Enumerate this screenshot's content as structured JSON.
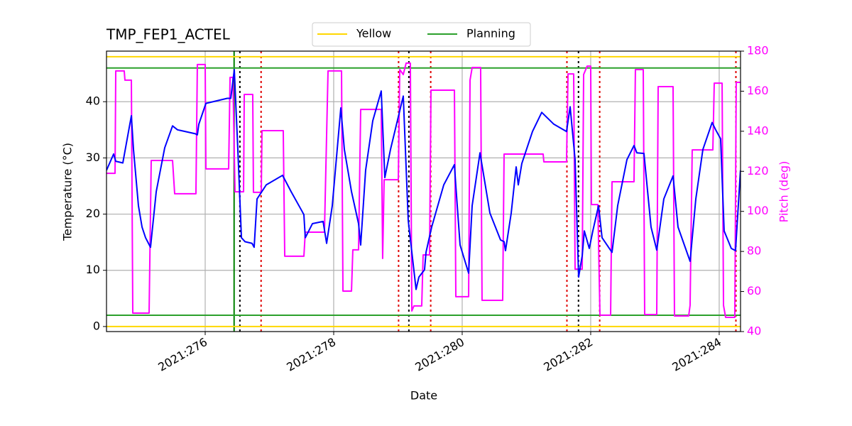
{
  "chart_data": {
    "type": "line",
    "title": "TMP_FEP1_ACTEL",
    "xlabel": "Date",
    "ylabel": "Temperature (°C)",
    "y2label": "Pitch (deg)",
    "y2color": "#ff00ff",
    "xlim": [
      274.464,
      284.332
    ],
    "xticks": [
      {
        "value": 276,
        "label": "2021:276"
      },
      {
        "value": 278,
        "label": "2021:278"
      },
      {
        "value": 280,
        "label": "2021:280"
      },
      {
        "value": 282,
        "label": "2021:282"
      },
      {
        "value": 284,
        "label": "2021:284"
      }
    ],
    "ylim": [
      -0.9,
      49
    ],
    "yticks": [
      0,
      10,
      20,
      30,
      40
    ],
    "y2lim": [
      40,
      180
    ],
    "y2ticks": [
      40,
      60,
      80,
      100,
      120,
      140,
      160,
      180
    ],
    "grid": true,
    "legend": "upper center",
    "series": [
      {
        "color": "#0000ff",
        "x": [
          274.464,
          274.575,
          274.608,
          274.718,
          274.851,
          274.884,
          274.961,
          275.017,
          275.072,
          275.149,
          275.238,
          275.37,
          275.492,
          275.569,
          275.846,
          275.878,
          275.901,
          276.011,
          276.343,
          276.398,
          276.453,
          276.508,
          276.564,
          276.619,
          276.729,
          276.762,
          276.807,
          276.95,
          277.204,
          277.337,
          277.503,
          277.536,
          277.558,
          277.669,
          277.835,
          277.89,
          277.978,
          278.111,
          278.166,
          278.277,
          278.387,
          278.42,
          278.497,
          278.608,
          278.74,
          278.796,
          278.884,
          278.995,
          279.083,
          279.16,
          279.282,
          279.326,
          279.414,
          279.437,
          279.525,
          279.713,
          279.879,
          279.901,
          279.967,
          280.1,
          280.155,
          280.277,
          280.431,
          280.597,
          280.652,
          280.674,
          280.763,
          280.84,
          280.873,
          280.928,
          281.094,
          281.238,
          281.426,
          281.624,
          281.68,
          281.757,
          281.812,
          281.868,
          281.901,
          281.978,
          282.033,
          282.122,
          282.177,
          282.332,
          282.42,
          282.564,
          282.674,
          282.718,
          282.829,
          282.939,
          283.028,
          283.138,
          283.282,
          283.359,
          283.47,
          283.547,
          283.636,
          283.746,
          283.89,
          283.945,
          284.022,
          284.077,
          284.188,
          284.254,
          284.331
        ],
        "values": [
          27.8,
          30.7,
          29.4,
          29.1,
          37.5,
          31.5,
          21.5,
          17.7,
          15.8,
          14.1,
          24.0,
          31.8,
          35.7,
          35.0,
          34.3,
          34.1,
          36.0,
          39.7,
          40.6,
          40.6,
          45.7,
          31.5,
          15.8,
          15.1,
          14.8,
          14.1,
          22.7,
          25.2,
          26.9,
          24.0,
          20.6,
          19.9,
          15.8,
          18.3,
          18.7,
          14.8,
          21.5,
          38.9,
          31.5,
          24.0,
          18.3,
          14.5,
          27.8,
          36.6,
          41.9,
          26.5,
          31.5,
          36.8,
          41.0,
          18.9,
          6.6,
          8.8,
          10.1,
          13.2,
          17.7,
          25.2,
          28.8,
          25.0,
          14.5,
          9.5,
          21.5,
          30.9,
          20.2,
          15.4,
          15.1,
          13.5,
          20.2,
          28.4,
          25.2,
          29.0,
          34.7,
          38.1,
          36.0,
          34.7,
          39.1,
          29.7,
          8.8,
          12.6,
          17.0,
          13.9,
          17.0,
          21.5,
          15.8,
          13.2,
          21.5,
          29.7,
          32.2,
          30.9,
          30.8,
          17.7,
          13.6,
          22.7,
          26.8,
          17.7,
          14.1,
          11.6,
          22.7,
          31.5,
          36.3,
          35.0,
          33.4,
          17.0,
          13.9,
          13.5,
          27.8
        ]
      },
      {
        "color": "#ff00ff",
        "axis": "y2",
        "x": [
          274.464,
          274.597,
          274.608,
          274.74,
          274.751,
          274.851,
          274.873,
          275.127,
          275.16,
          275.492,
          275.525,
          275.856,
          275.878,
          276.0,
          276.011,
          276.365,
          276.387,
          276.431,
          276.464,
          276.597,
          276.608,
          276.74,
          276.751,
          276.873,
          276.884,
          277.215,
          277.238,
          277.536,
          277.558,
          277.856,
          277.912,
          278.122,
          278.144,
          278.277,
          278.298,
          278.387,
          278.42,
          278.74,
          278.762,
          278.785,
          279.006,
          279.028,
          279.083,
          279.127,
          279.193,
          279.216,
          279.249,
          279.37,
          279.392,
          279.492,
          279.514,
          279.879,
          279.901,
          280.1,
          280.122,
          280.155,
          280.287,
          280.309,
          280.63,
          280.652,
          281.26,
          281.271,
          281.624,
          281.647,
          281.735,
          281.757,
          281.868,
          281.89,
          281.945,
          282.0,
          282.011,
          282.111,
          282.144,
          282.31,
          282.332,
          282.674,
          282.696,
          282.818,
          282.84,
          283.028,
          283.05,
          283.282,
          283.304,
          283.525,
          283.547,
          283.58,
          283.901,
          283.923,
          284.045,
          284.067,
          284.1,
          284.243,
          284.265,
          284.331
        ],
        "values": [
          119.0,
          119.0,
          170.1,
          170.1,
          165.5,
          165.5,
          49.2,
          49.2,
          125.4,
          125.4,
          108.8,
          108.8,
          173.3,
          173.3,
          121.2,
          121.2,
          166.9,
          166.9,
          109.8,
          109.8,
          158.4,
          158.4,
          109.5,
          109.5,
          140.3,
          140.3,
          77.6,
          77.6,
          89.6,
          89.6,
          170.1,
          170.1,
          60.2,
          60.2,
          80.8,
          80.8,
          150.9,
          150.9,
          76.5,
          115.8,
          115.8,
          170.8,
          168.3,
          174.0,
          174.0,
          50.3,
          52.8,
          52.8,
          78.3,
          78.3,
          160.5,
          160.5,
          57.4,
          57.4,
          165.5,
          171.8,
          171.8,
          55.6,
          55.6,
          128.6,
          128.6,
          124.7,
          124.7,
          168.6,
          168.6,
          71.2,
          71.2,
          168.3,
          172.5,
          172.5,
          103.4,
          103.4,
          48.2,
          48.2,
          114.8,
          114.8,
          170.8,
          170.8,
          48.5,
          48.5,
          162.3,
          162.3,
          47.8,
          47.8,
          53.1,
          130.7,
          130.7,
          164.0,
          164.0,
          53.1,
          47.1,
          47.1,
          164.4,
          164.4
        ]
      }
    ],
    "hlines": [
      {
        "name": "Yellow",
        "color": "#ffd700",
        "values": [
          48,
          0
        ]
      },
      {
        "name": "Planning",
        "color": "#2ca02c",
        "values": [
          46,
          2
        ]
      }
    ],
    "vlines": [
      {
        "color": "#008000",
        "style": "solid",
        "values": [
          276.45
        ]
      },
      {
        "color": "#000000",
        "style": "dotted",
        "values": [
          276.54,
          279.17,
          281.81
        ]
      },
      {
        "color": "#e00000",
        "style": "dotted",
        "values": [
          276.87,
          279.01,
          279.51,
          281.63,
          282.14,
          284.26
        ]
      }
    ]
  }
}
